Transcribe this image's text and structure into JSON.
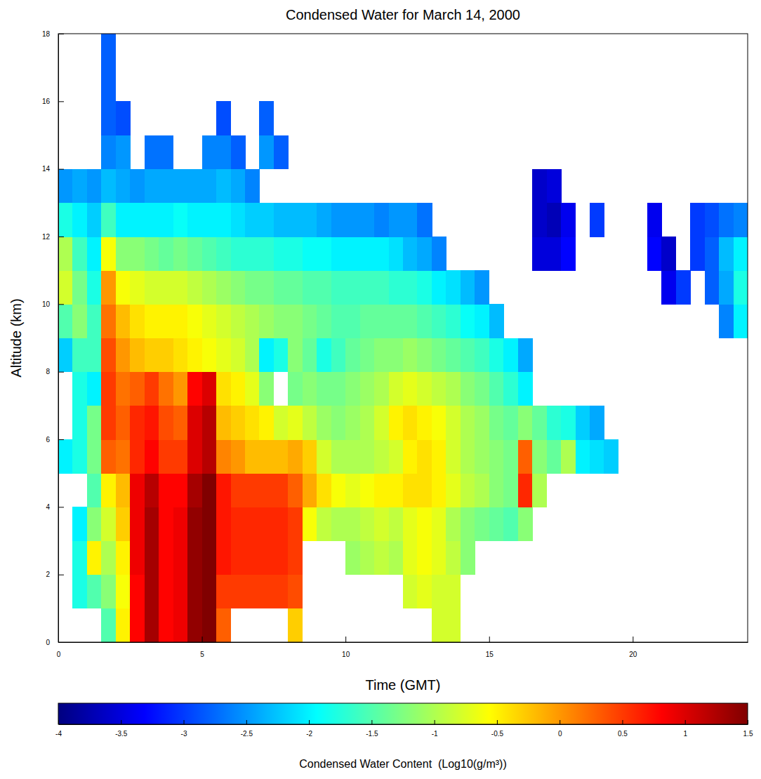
{
  "chart_data": {
    "type": "heatmap",
    "title": "Condensed Water for March 14, 2000",
    "x_label": "Time (GMT)",
    "y_label": "Altitude (km)",
    "xlim": [
      0,
      24
    ],
    "ylim": [
      0,
      18
    ],
    "xticks": [
      0,
      5,
      10,
      15,
      20
    ],
    "yticks": [
      0,
      2,
      4,
      6,
      8,
      10,
      12,
      14,
      16,
      18
    ],
    "xbins": [
      0,
      0.5,
      1,
      1.5,
      2,
      2.5,
      3,
      3.5,
      4,
      4.5,
      5,
      5.5,
      6,
      6.5,
      7,
      7.5,
      8,
      8.5,
      9,
      9.5,
      10,
      10.5,
      11,
      11.5,
      12,
      12.5,
      13,
      13.5,
      14,
      14.5,
      15,
      15.5,
      16,
      16.5,
      17,
      17.5,
      18,
      18.5,
      19,
      19.5,
      20,
      20.5,
      21,
      21.5,
      22,
      22.5,
      23,
      23.5,
      24
    ],
    "ybins": [
      0,
      1,
      2,
      3,
      4,
      5,
      6,
      7,
      8,
      9,
      10,
      11,
      12,
      13,
      14,
      15,
      16,
      17,
      18
    ],
    "z": [
      [
        null,
        null,
        null,
        -1.5,
        -0.5,
        0.8,
        1.3,
        0.8,
        0.9,
        1.4,
        1.5,
        0.3,
        null,
        null,
        null,
        null,
        -0.3,
        null,
        null,
        null,
        null,
        null,
        null,
        null,
        null,
        null,
        -0.8,
        -0.8,
        null,
        null,
        null,
        null,
        null,
        null,
        null,
        null,
        null,
        null,
        null,
        null,
        null,
        null,
        null,
        null,
        null,
        null,
        null,
        null
      ],
      [
        null,
        -1.8,
        -1.5,
        -1.2,
        -0.6,
        0.8,
        1.3,
        0.8,
        0.9,
        1.4,
        1.5,
        0.5,
        0.5,
        0.5,
        0.5,
        0.5,
        0.4,
        null,
        null,
        null,
        null,
        null,
        null,
        null,
        -0.8,
        -0.7,
        -0.8,
        -0.8,
        null,
        null,
        null,
        null,
        null,
        null,
        null,
        null,
        null,
        null,
        null,
        null,
        null,
        null,
        null,
        null,
        null,
        null,
        null,
        null
      ],
      [
        null,
        -1.8,
        -0.5,
        -1.0,
        -0.5,
        0.9,
        1.3,
        0.8,
        0.9,
        1.4,
        1.5,
        0.7,
        0.6,
        0.6,
        0.6,
        0.6,
        0.5,
        null,
        null,
        null,
        -1.1,
        -1.0,
        -0.9,
        -1.0,
        -0.7,
        -0.6,
        -0.7,
        -0.9,
        -1.2,
        null,
        null,
        null,
        null,
        null,
        null,
        null,
        null,
        null,
        null,
        null,
        null,
        null,
        null,
        null,
        null,
        null,
        null,
        null
      ],
      [
        null,
        -2.0,
        -1.2,
        -0.8,
        -0.3,
        0.9,
        1.3,
        0.8,
        0.9,
        1.4,
        1.5,
        0.7,
        0.6,
        0.6,
        0.6,
        0.6,
        0.5,
        -0.6,
        -0.9,
        -1.0,
        -1.0,
        -0.9,
        -0.8,
        -0.9,
        -0.7,
        -0.6,
        -0.7,
        -1.0,
        -1.2,
        -1.3,
        -1.4,
        -1.5,
        -1.2,
        null,
        null,
        null,
        null,
        null,
        null,
        null,
        null,
        null,
        null,
        null,
        null,
        null,
        null,
        null
      ],
      [
        null,
        null,
        -1.5,
        -0.5,
        -0.2,
        0.9,
        1.2,
        0.8,
        0.8,
        1.3,
        1.5,
        0.7,
        0.5,
        0.5,
        0.5,
        0.5,
        0.3,
        -0.1,
        -0.4,
        -0.6,
        -0.7,
        -0.6,
        -0.5,
        -0.5,
        -0.4,
        -0.4,
        -0.5,
        -0.7,
        -0.9,
        -1.0,
        -1.2,
        -1.3,
        0.6,
        -1.0,
        null,
        null,
        null,
        null,
        null,
        null,
        null,
        null,
        null,
        null,
        null,
        null,
        null,
        null
      ],
      [
        -2.0,
        -1.8,
        -1.3,
        0.3,
        0.2,
        0.6,
        0.8,
        0.5,
        0.5,
        1.0,
        1.2,
        0.1,
        0.0,
        -0.2,
        -0.2,
        -0.2,
        -0.1,
        -0.3,
        -0.8,
        -1.0,
        -1.0,
        -1.0,
        -0.9,
        -0.8,
        -0.5,
        -0.4,
        -0.5,
        -0.8,
        -1.0,
        -1.1,
        -1.2,
        -1.3,
        0.3,
        -1.2,
        -1.4,
        -1.0,
        -2.0,
        -2.1,
        -2.2,
        null,
        null,
        null,
        null,
        null,
        null,
        null,
        null,
        null
      ],
      [
        null,
        -1.8,
        -1.3,
        0.5,
        0.3,
        0.6,
        0.7,
        0.4,
        0.3,
        1.0,
        1.2,
        -0.2,
        -0.3,
        -0.4,
        -0.5,
        -0.8,
        -0.7,
        -0.9,
        -1.1,
        -1.2,
        -1.1,
        -1.0,
        -0.8,
        -0.5,
        -0.4,
        -0.5,
        -0.6,
        -0.8,
        -1.0,
        -1.1,
        -1.3,
        -1.4,
        -1.2,
        -1.4,
        -1.7,
        -1.8,
        -2.2,
        -2.4,
        null,
        null,
        null,
        null,
        null,
        null,
        null,
        null,
        null,
        null
      ],
      [
        null,
        -1.8,
        -2.0,
        0.5,
        0.2,
        0.3,
        0.5,
        0.2,
        0.0,
        0.8,
        1.0,
        -0.4,
        -0.5,
        -0.7,
        -1.2,
        null,
        -1.3,
        -1.2,
        -1.3,
        -1.3,
        -1.2,
        -1.1,
        -1.0,
        -0.8,
        -0.7,
        -0.8,
        -0.9,
        -1.0,
        -1.2,
        -1.3,
        -1.5,
        -1.7,
        -2.0,
        null,
        null,
        null,
        null,
        null,
        null,
        null,
        null,
        null,
        null,
        null,
        null,
        null,
        null,
        null
      ],
      [
        -2.2,
        -1.6,
        -1.6,
        0.4,
        0.0,
        -0.2,
        -0.3,
        -0.3,
        -0.4,
        -0.5,
        -0.6,
        -0.7,
        -0.8,
        -1.0,
        -2.0,
        -1.8,
        -1.2,
        -1.4,
        -1.8,
        -1.6,
        -1.4,
        -1.3,
        -1.2,
        -1.2,
        -1.1,
        -1.2,
        -1.3,
        -1.4,
        -1.5,
        -1.6,
        -1.8,
        -2.0,
        -2.4,
        null,
        null,
        null,
        null,
        null,
        null,
        null,
        null,
        null,
        null,
        null,
        null,
        null,
        null,
        null
      ],
      [
        -1.5,
        -1.2,
        -1.6,
        0.2,
        -0.2,
        -0.4,
        -0.5,
        -0.5,
        -0.5,
        -0.6,
        -0.7,
        -0.8,
        -0.9,
        -1.0,
        -1.1,
        -1.2,
        -1.2,
        -1.3,
        -1.4,
        -1.5,
        -1.5,
        -1.4,
        -1.4,
        -1.4,
        -1.4,
        -1.5,
        -1.6,
        -1.7,
        -1.9,
        -2.0,
        -2.3,
        null,
        null,
        null,
        null,
        null,
        null,
        null,
        null,
        null,
        null,
        null,
        null,
        null,
        null,
        null,
        -2.6,
        -2.0
      ],
      [
        -0.8,
        -1.3,
        -1.8,
        0.0,
        -0.6,
        -0.7,
        -0.8,
        -0.8,
        -0.8,
        -0.9,
        -1.0,
        -1.1,
        -1.2,
        -1.3,
        -1.3,
        -1.4,
        -1.4,
        -1.5,
        -1.5,
        -1.6,
        -1.6,
        -1.6,
        -1.6,
        -1.7,
        -1.7,
        -1.8,
        -2.0,
        -2.1,
        -2.3,
        -2.5,
        null,
        null,
        null,
        null,
        null,
        null,
        null,
        null,
        null,
        null,
        null,
        null,
        -3.4,
        -3.0,
        null,
        -2.8,
        -2.4,
        -1.8
      ],
      [
        -1.0,
        -1.6,
        -2.0,
        -0.6,
        -1.2,
        -1.2,
        -1.3,
        -1.4,
        -1.3,
        -1.4,
        -1.5,
        -1.6,
        -1.7,
        -1.7,
        -1.7,
        -1.8,
        -1.8,
        -1.9,
        -1.9,
        -2.0,
        -2.0,
        -2.0,
        -2.0,
        -2.1,
        -2.3,
        -2.4,
        -2.6,
        null,
        null,
        null,
        null,
        null,
        null,
        -3.5,
        -3.5,
        -3.3,
        null,
        null,
        null,
        null,
        null,
        -3.3,
        -3.6,
        null,
        -3.0,
        -2.8,
        -2.3,
        -2.0
      ],
      [
        -1.8,
        -2.0,
        -2.2,
        -1.6,
        -2.0,
        -2.0,
        -2.0,
        -2.0,
        -1.9,
        -2.0,
        -2.0,
        -2.0,
        -2.1,
        -2.2,
        -2.2,
        -2.3,
        -2.3,
        -2.3,
        -2.4,
        -2.5,
        -2.5,
        -2.5,
        -2.6,
        -2.5,
        -2.5,
        -2.7,
        null,
        null,
        null,
        null,
        null,
        null,
        null,
        -3.6,
        -3.7,
        -3.4,
        null,
        -3.0,
        null,
        null,
        null,
        -3.4,
        null,
        null,
        -3.0,
        -2.9,
        -2.7,
        -2.6
      ],
      [
        -2.5,
        -2.4,
        -2.5,
        -2.3,
        -2.4,
        -2.5,
        -2.4,
        -2.4,
        -2.4,
        -2.4,
        -2.4,
        -2.3,
        -2.4,
        -2.6,
        null,
        null,
        null,
        null,
        null,
        null,
        null,
        null,
        null,
        null,
        null,
        null,
        null,
        null,
        null,
        null,
        null,
        null,
        null,
        -3.6,
        -3.5,
        null,
        null,
        null,
        null,
        null,
        null,
        null,
        null,
        null,
        null,
        null,
        null,
        null
      ],
      [
        null,
        null,
        null,
        -2.6,
        -2.5,
        null,
        -2.7,
        -2.7,
        null,
        null,
        -2.6,
        -2.6,
        -2.8,
        null,
        -2.5,
        -2.8,
        null,
        null,
        null,
        null,
        null,
        null,
        null,
        null,
        null,
        null,
        null,
        null,
        null,
        null,
        null,
        null,
        null,
        null,
        null,
        null,
        null,
        null,
        null,
        null,
        null,
        null,
        null,
        null,
        null,
        null,
        null,
        null
      ],
      [
        null,
        null,
        null,
        -2.8,
        -2.9,
        null,
        null,
        null,
        null,
        null,
        null,
        -2.9,
        null,
        null,
        -2.8,
        null,
        null,
        null,
        null,
        null,
        null,
        null,
        null,
        null,
        null,
        null,
        null,
        null,
        null,
        null,
        null,
        null,
        null,
        null,
        null,
        null,
        null,
        null,
        null,
        null,
        null,
        null,
        null,
        null,
        null,
        null,
        null,
        null
      ],
      [
        null,
        null,
        null,
        -2.8,
        null,
        null,
        null,
        null,
        null,
        null,
        null,
        null,
        null,
        null,
        null,
        null,
        null,
        null,
        null,
        null,
        null,
        null,
        null,
        null,
        null,
        null,
        null,
        null,
        null,
        null,
        null,
        null,
        null,
        null,
        null,
        null,
        null,
        null,
        null,
        null,
        null,
        null,
        null,
        null,
        null,
        null,
        null,
        null
      ],
      [
        null,
        null,
        null,
        -2.8,
        null,
        null,
        null,
        null,
        null,
        null,
        null,
        null,
        null,
        null,
        null,
        null,
        null,
        null,
        null,
        null,
        null,
        null,
        null,
        null,
        null,
        null,
        null,
        null,
        null,
        null,
        null,
        null,
        null,
        null,
        null,
        null,
        null,
        null,
        null,
        null,
        null,
        null,
        null,
        null,
        null,
        null,
        null,
        null
      ]
    ],
    "colorbar": {
      "label": "Condensed Water Content  (Log10(g/m³))",
      "range": [
        -4,
        1.5
      ],
      "ticks": [
        -4,
        -3.5,
        -3,
        -2.5,
        -2,
        -1.5,
        -1,
        -0.5,
        0,
        0.5,
        1,
        1.5
      ]
    }
  }
}
